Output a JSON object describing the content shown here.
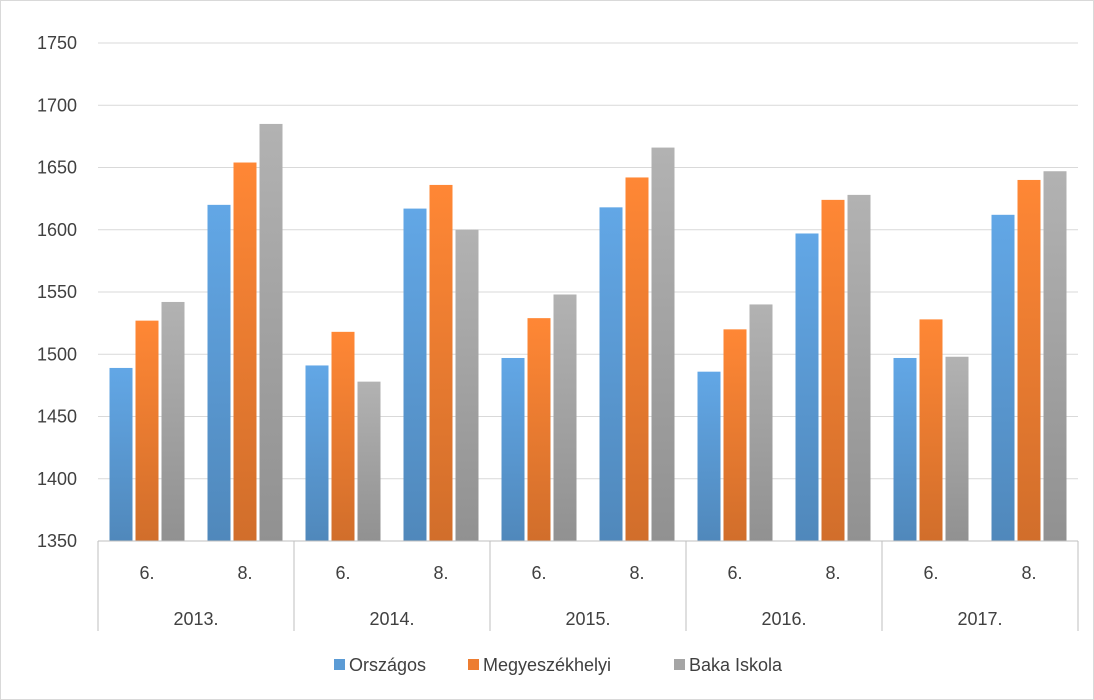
{
  "chart_data": {
    "type": "bar",
    "title": "",
    "xlabel": "",
    "ylabel": "",
    "ylim": [
      1350,
      1750
    ],
    "yticks": [
      1350,
      1400,
      1450,
      1500,
      1550,
      1600,
      1650,
      1700,
      1750
    ],
    "grid": true,
    "legend_position": "bottom",
    "groups": [
      {
        "label": "2013.",
        "categories": [
          "6.",
          "8."
        ]
      },
      {
        "label": "2014.",
        "categories": [
          "6.",
          "8."
        ]
      },
      {
        "label": "2015.",
        "categories": [
          "6.",
          "8."
        ]
      },
      {
        "label": "2016.",
        "categories": [
          "6.",
          "8."
        ]
      },
      {
        "label": "2017.",
        "categories": [
          "6.",
          "8."
        ]
      }
    ],
    "series": [
      {
        "name": "Országos",
        "color": "#5b9bd5",
        "values": [
          1489,
          1620,
          1491,
          1617,
          1497,
          1618,
          1486,
          1597,
          1497,
          1612
        ]
      },
      {
        "name": "Megyeszékhelyi",
        "color": "#ed7d31",
        "values": [
          1527,
          1654,
          1518,
          1636,
          1529,
          1642,
          1520,
          1624,
          1528,
          1640
        ]
      },
      {
        "name": "Baka Iskola",
        "color": "#a5a5a5",
        "values": [
          1542,
          1685,
          1478,
          1600,
          1548,
          1666,
          1540,
          1628,
          1498,
          1647
        ]
      }
    ]
  }
}
